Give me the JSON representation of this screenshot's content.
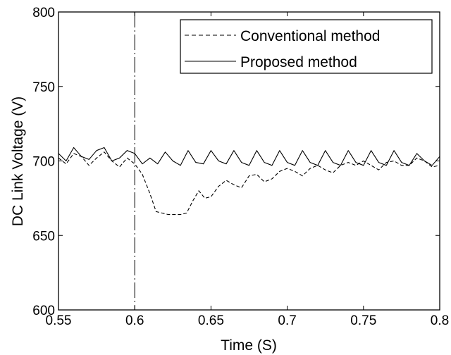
{
  "colors": {
    "background": "#ffffff",
    "line": "#000000"
  },
  "chart_data": {
    "type": "line",
    "title": "",
    "xlabel": "Time (S)",
    "ylabel": "DC Link Voltage (V)",
    "xlim": [
      0.55,
      0.8
    ],
    "ylim": [
      600,
      800
    ],
    "xticks": [
      0.55,
      0.6,
      0.65,
      0.7,
      0.75,
      0.8
    ],
    "xtick_labels": [
      "0.55",
      "0.6",
      "0.65",
      "0.7",
      "0.75",
      "0.8"
    ],
    "yticks": [
      600,
      650,
      700,
      750,
      800
    ],
    "ytick_labels": [
      "600",
      "650",
      "700",
      "750",
      "800"
    ],
    "grid": false,
    "legend_position": "top-right",
    "vertical_marker": {
      "x": 0.6,
      "style": "dash-dot"
    },
    "series": [
      {
        "name": "Conventional method",
        "style": "dashed",
        "x": [
          0.55,
          0.555,
          0.56,
          0.565,
          0.57,
          0.575,
          0.58,
          0.585,
          0.59,
          0.595,
          0.6,
          0.605,
          0.61,
          0.614,
          0.618,
          0.622,
          0.626,
          0.63,
          0.634,
          0.638,
          0.642,
          0.646,
          0.65,
          0.655,
          0.66,
          0.665,
          0.67,
          0.675,
          0.68,
          0.685,
          0.69,
          0.695,
          0.7,
          0.705,
          0.71,
          0.715,
          0.72,
          0.725,
          0.73,
          0.735,
          0.74,
          0.745,
          0.75,
          0.755,
          0.76,
          0.765,
          0.77,
          0.775,
          0.78,
          0.785,
          0.79,
          0.795,
          0.8
        ],
        "y": [
          702,
          698,
          705,
          703,
          697,
          702,
          706,
          700,
          696,
          702,
          698,
          691,
          678,
          666,
          665,
          664,
          664,
          664,
          665,
          673,
          680,
          675,
          676,
          683,
          687,
          684,
          682,
          690,
          691,
          686,
          688,
          693,
          695,
          693,
          690,
          695,
          697,
          694,
          692,
          697,
          699,
          697,
          700,
          697,
          694,
          699,
          700,
          697,
          697,
          702,
          700,
          696,
          697
        ]
      },
      {
        "name": "Proposed method",
        "style": "solid",
        "x": [
          0.55,
          0.555,
          0.56,
          0.565,
          0.57,
          0.575,
          0.58,
          0.585,
          0.59,
          0.595,
          0.6,
          0.605,
          0.61,
          0.615,
          0.62,
          0.625,
          0.63,
          0.635,
          0.64,
          0.645,
          0.65,
          0.655,
          0.66,
          0.665,
          0.67,
          0.675,
          0.68,
          0.685,
          0.69,
          0.695,
          0.7,
          0.705,
          0.71,
          0.715,
          0.72,
          0.725,
          0.73,
          0.735,
          0.74,
          0.745,
          0.75,
          0.755,
          0.76,
          0.765,
          0.77,
          0.775,
          0.78,
          0.785,
          0.79,
          0.795,
          0.8
        ],
        "y": [
          705,
          700,
          709,
          703,
          701,
          707,
          709,
          700,
          702,
          707,
          705,
          698,
          702,
          698,
          706,
          700,
          697,
          707,
          699,
          698,
          707,
          700,
          698,
          707,
          699,
          697,
          707,
          699,
          697,
          707,
          699,
          697,
          707,
          699,
          697,
          707,
          699,
          697,
          707,
          699,
          697,
          707,
          699,
          697,
          707,
          699,
          697,
          705,
          700,
          697,
          703
        ]
      }
    ]
  }
}
